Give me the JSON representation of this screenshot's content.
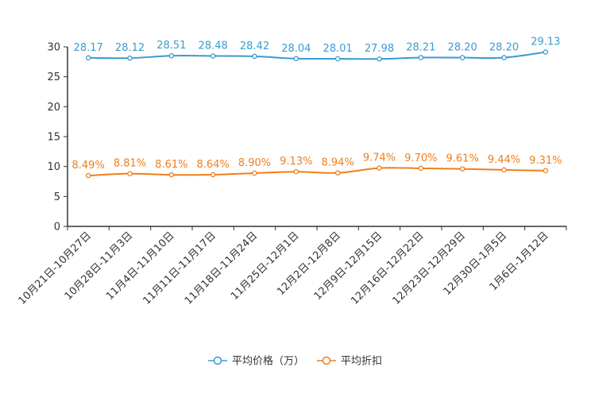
{
  "chart_data": {
    "type": "line",
    "categories": [
      "10月21日-10月27日",
      "10月28日-11月3日",
      "11月4日-11月10日",
      "11月11日-11月17日",
      "11月18日-11月24日",
      "11月25日-12月1日",
      "12月2日-12月8日",
      "12月9日-12月15日",
      "12月16日-12月22日",
      "12月23日-12月29日",
      "12月30日-1月5日",
      "1月6日-1月12日"
    ],
    "series": [
      {
        "name": "平均价格（万）",
        "color": "#3a9bd0",
        "values": [
          28.17,
          28.12,
          28.51,
          28.48,
          28.42,
          28.04,
          28.01,
          27.98,
          28.21,
          28.2,
          28.2,
          29.13
        ],
        "labels": [
          "28.17",
          "28.12",
          "28.51",
          "28.48",
          "28.42",
          "28.04",
          "28.01",
          "27.98",
          "28.21",
          "28.20",
          "28.20",
          "29.13"
        ]
      },
      {
        "name": "平均折扣",
        "color": "#f07f1a",
        "values": [
          8.49,
          8.81,
          8.61,
          8.64,
          8.9,
          9.13,
          8.94,
          9.74,
          9.7,
          9.61,
          9.44,
          9.31
        ],
        "labels": [
          "8.49%",
          "8.81%",
          "8.61%",
          "8.64%",
          "8.90%",
          "9.13%",
          "8.94%",
          "9.74%",
          "9.70%",
          "9.61%",
          "9.44%",
          "9.31%"
        ]
      }
    ],
    "yticks": [
      "0",
      "5",
      "10",
      "15",
      "20",
      "25",
      "30"
    ],
    "ylim": [
      0,
      30
    ],
    "title": "",
    "xlabel": "",
    "ylabel": "",
    "legend_position": "bottom-center"
  }
}
